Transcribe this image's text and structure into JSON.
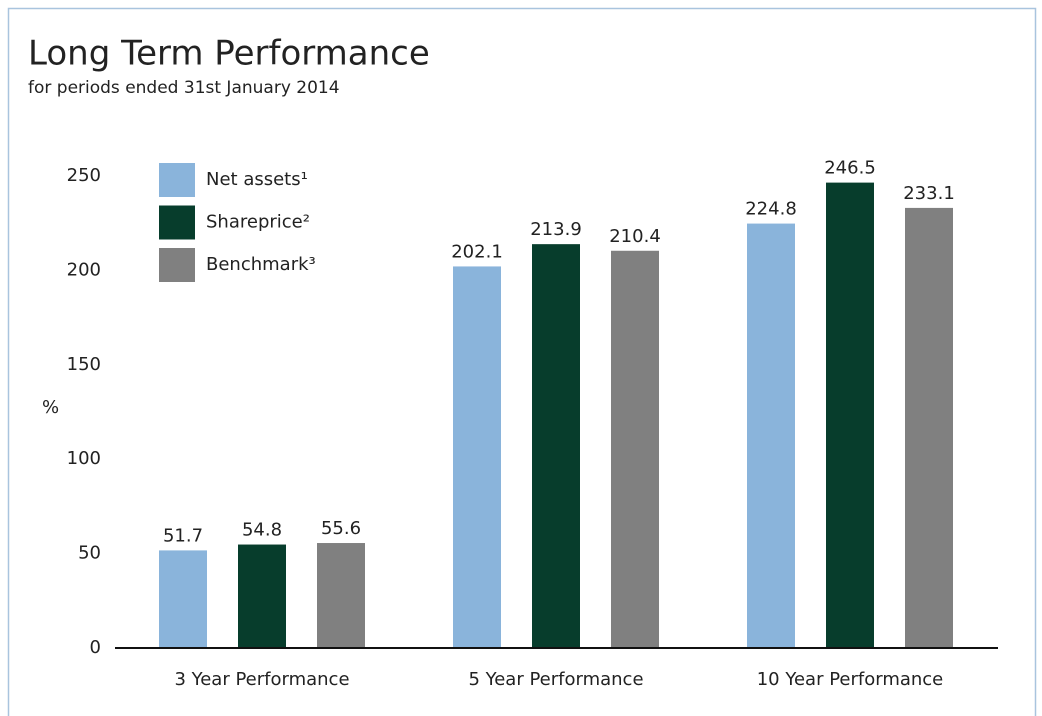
{
  "chart_data": {
    "type": "bar",
    "title": "Long Term Performance",
    "subtitle": "for periods ended 31st January 2014",
    "ylabel": "%",
    "categories": [
      "3 Year Performance",
      "5 Year Performance",
      "10 Year Performance"
    ],
    "series": [
      {
        "name": "Net assets¹",
        "color": "#8ab4db",
        "values": [
          51.7,
          202.1,
          224.8
        ]
      },
      {
        "name": "Shareprice²",
        "color": "#073d2c",
        "values": [
          54.8,
          213.9,
          246.5
        ]
      },
      {
        "name": "Benchmark³",
        "color": "#808080",
        "values": [
          55.6,
          210.4,
          233.1
        ]
      }
    ],
    "ylim": [
      0,
      250
    ],
    "yticks": [
      0,
      50,
      100,
      150,
      200,
      250
    ],
    "grid": false,
    "legend": "upper left"
  }
}
